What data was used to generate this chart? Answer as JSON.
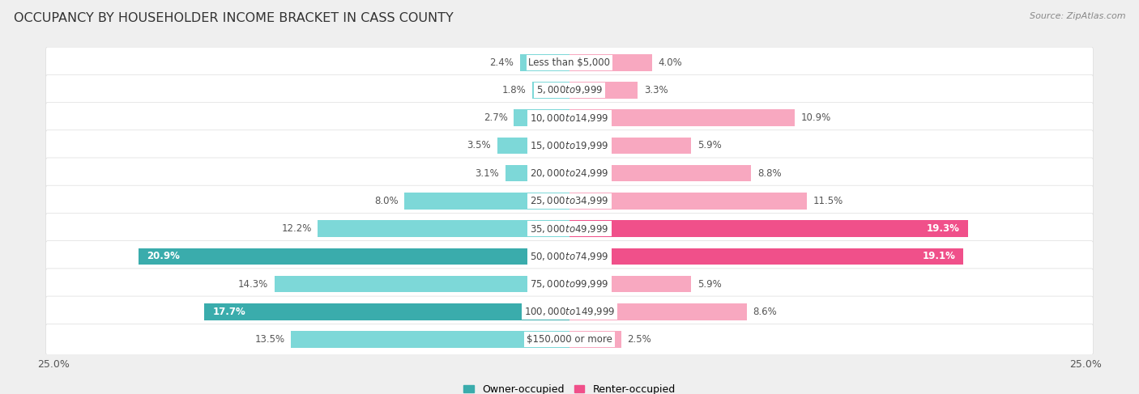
{
  "title": "OCCUPANCY BY HOUSEHOLDER INCOME BRACKET IN CASS COUNTY",
  "source": "Source: ZipAtlas.com",
  "categories": [
    "Less than $5,000",
    "$5,000 to $9,999",
    "$10,000 to $14,999",
    "$15,000 to $19,999",
    "$20,000 to $24,999",
    "$25,000 to $34,999",
    "$35,000 to $49,999",
    "$50,000 to $74,999",
    "$75,000 to $99,999",
    "$100,000 to $149,999",
    "$150,000 or more"
  ],
  "owner_values": [
    2.4,
    1.8,
    2.7,
    3.5,
    3.1,
    8.0,
    12.2,
    20.9,
    14.3,
    17.7,
    13.5
  ],
  "renter_values": [
    4.0,
    3.3,
    10.9,
    5.9,
    8.8,
    11.5,
    19.3,
    19.1,
    5.9,
    8.6,
    2.5
  ],
  "owner_color_light": "#7DD8D8",
  "owner_color_dark": "#3AACAC",
  "renter_color_light": "#F8A8C0",
  "renter_color_dark": "#F0508A",
  "owner_threshold": 15.0,
  "renter_threshold": 15.0,
  "bg_color": "#EFEFEF",
  "row_bg_color": "#FFFFFF",
  "row_border_color": "#DDDDDD",
  "axis_limit": 25.0,
  "title_fontsize": 11.5,
  "label_fontsize": 8.5,
  "legend_fontsize": 9,
  "source_fontsize": 8,
  "category_fontsize": 8.5,
  "value_label_color_outside": "#555555",
  "value_label_color_inside": "#FFFFFF"
}
